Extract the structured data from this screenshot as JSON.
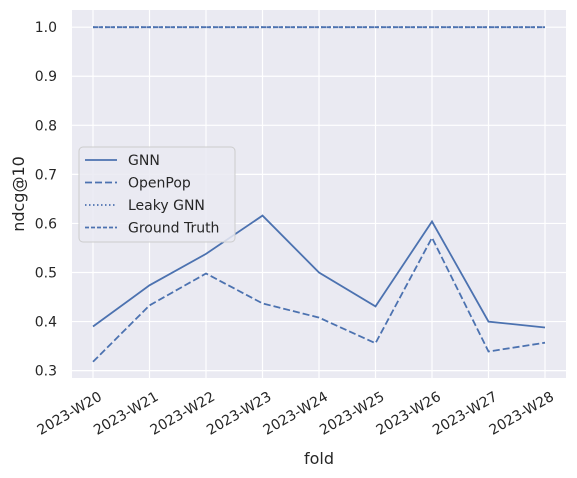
{
  "chart_data": {
    "type": "line",
    "title": "",
    "xlabel": "fold",
    "ylabel": "ndcg@10",
    "categories": [
      "2023-W20",
      "2023-W21",
      "2023-W22",
      "2023-W23",
      "2023-W24",
      "2023-W25",
      "2023-W26",
      "2023-W27",
      "2023-W28"
    ],
    "ylim": [
      0.285,
      1.035
    ],
    "yticks": [
      0.3,
      0.4,
      0.5,
      0.6,
      0.7,
      0.8,
      0.9,
      1.0
    ],
    "ytick_labels": [
      "0.3",
      "0.4",
      "0.5",
      "0.6",
      "0.7",
      "0.8",
      "0.9",
      "1.0"
    ],
    "grid": true,
    "legend_position": "center-left",
    "colors": {
      "background": "#eaeaf2",
      "grid": "#ffffff",
      "line": "#4c72b0",
      "legend_bg": "#eaeaf2"
    },
    "series": [
      {
        "name": "GNN",
        "style": "solid",
        "values": [
          0.39,
          0.474,
          0.538,
          0.616,
          0.5,
          0.431,
          0.604,
          0.4,
          0.388
        ]
      },
      {
        "name": "OpenPop",
        "style": "dashed",
        "values": [
          0.318,
          0.433,
          0.498,
          0.437,
          0.408,
          0.356,
          0.571,
          0.339,
          0.357
        ]
      },
      {
        "name": "Leaky GNN",
        "style": "dotted",
        "values": [
          1.0,
          1.0,
          1.0,
          1.0,
          1.0,
          1.0,
          1.0,
          1.0,
          1.0
        ]
      },
      {
        "name": "Ground Truth",
        "style": "dashdot",
        "values": [
          1.0,
          1.0,
          1.0,
          1.0,
          1.0,
          1.0,
          1.0,
          1.0,
          1.0
        ]
      }
    ]
  }
}
